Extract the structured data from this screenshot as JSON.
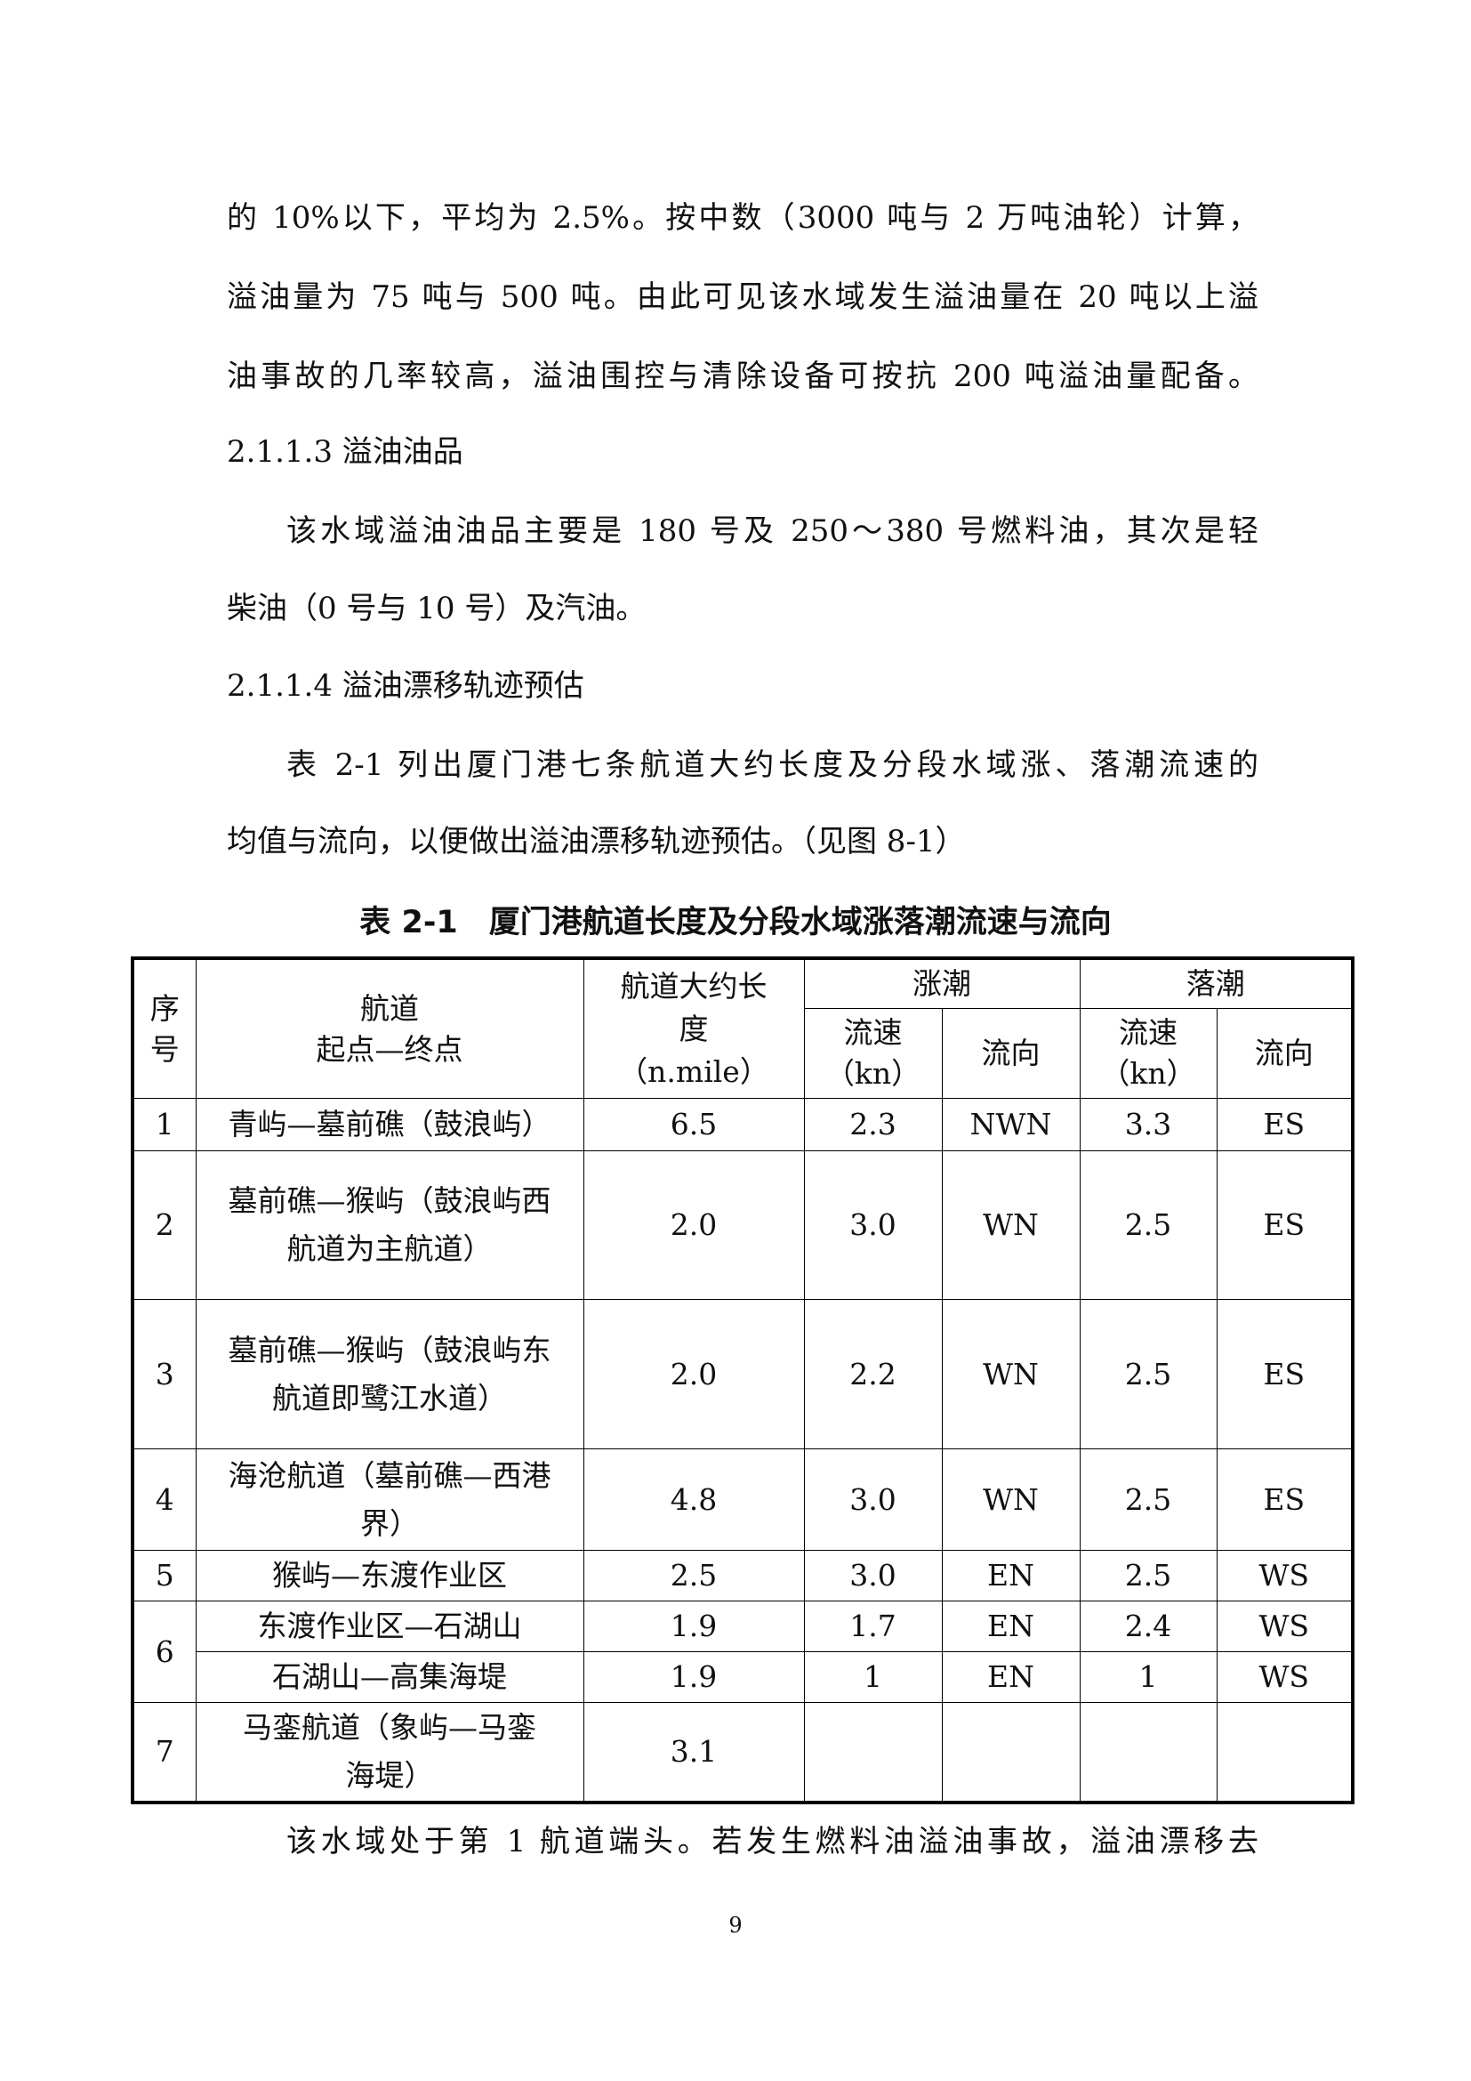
{
  "paragraphs": [
    "的 10%以下，平均为 2.5%。按中数（3000 吨与 2 万吨油轮）计算，",
    "溢油量为 75 吨与 500 吨。由此可见该水域发生溢油量在 20 吨以上溢",
    "油事故的几率较高，溢油围控与清除设备可按抗 200 吨溢油量配备。",
    "2.1.1.3 溢油油品",
    "该水域溢油油品主要是 180 号及 250～380 号燃料油，其次是轻",
    "柴油（0 号与 10 号）及汽油。",
    "2.1.1.4 溢油漂移轨迹预估",
    "表 2-1 列出厦门港七条航道大约长度及分段水域涨、落潮流速的",
    "均值与流向，以便做出溢油漂移轨迹预估。（见图 8-1）",
    "该水域处于第 1 航道端头。若发生燃料油溢油事故，溢油漂移去"
  ],
  "table": {
    "title": "表 2-1　厦门港航道长度及分段水域涨落潮流速与流向",
    "headers": {
      "index": "序号",
      "route": "航道\n起点—终点",
      "length": "航道大约长度\n（n.mile）",
      "flood": "涨潮",
      "ebb": "落潮",
      "speed": "流速\n（kn）",
      "direction": "流向"
    },
    "rows": [
      {
        "no": "1",
        "route": "青屿—墓前礁（鼓浪屿）",
        "length": "6.5",
        "flood_speed": "2.3",
        "flood_dir": "NWN",
        "ebb_speed": "3.3",
        "ebb_dir": "ES"
      },
      {
        "no": "2",
        "route": "墓前礁—猴屿（鼓浪屿西航道为主航道）",
        "length": "2.0",
        "flood_speed": "3.0",
        "flood_dir": "WN",
        "ebb_speed": "2.5",
        "ebb_dir": "ES"
      },
      {
        "no": "3",
        "route": "墓前礁—猴屿（鼓浪屿东航道即鹭江水道）",
        "length": "2.0",
        "flood_speed": "2.2",
        "flood_dir": "WN",
        "ebb_speed": "2.5",
        "ebb_dir": "ES"
      },
      {
        "no": "4",
        "route": "海沧航道（墓前礁—西港界）",
        "length": "4.8",
        "flood_speed": "3.0",
        "flood_dir": "WN",
        "ebb_speed": "2.5",
        "ebb_dir": "ES"
      },
      {
        "no": "5",
        "route": "猴屿—东渡作业区",
        "length": "2.5",
        "flood_speed": "3.0",
        "flood_dir": "EN",
        "ebb_speed": "2.5",
        "ebb_dir": "WS"
      },
      {
        "no": "6",
        "route": "东渡作业区—石湖山",
        "length": "1.9",
        "flood_speed": "1.7",
        "flood_dir": "EN",
        "ebb_speed": "2.4",
        "ebb_dir": "WS"
      },
      {
        "no": "",
        "route": "石湖山—高集海堤",
        "length": "1.9",
        "flood_speed": "1",
        "flood_dir": "EN",
        "ebb_speed": "1",
        "ebb_dir": "WS"
      },
      {
        "no": "7",
        "route": "马銮航道（象屿—马銮海堤）",
        "length": "3.1",
        "flood_speed": "",
        "flood_dir": "",
        "ebb_speed": "",
        "ebb_dir": ""
      }
    ]
  },
  "page_number": "9"
}
